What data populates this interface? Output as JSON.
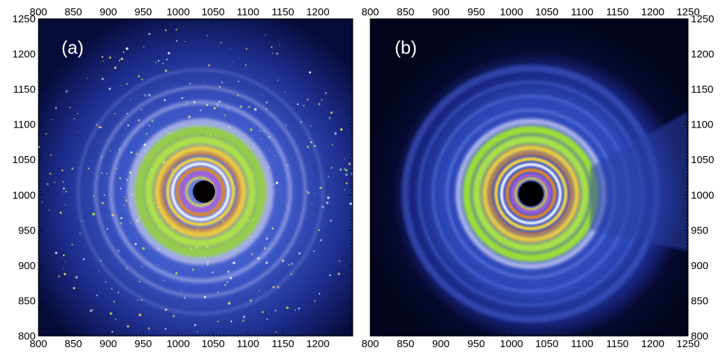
{
  "figure": {
    "panels": [
      {
        "id": "a",
        "label": "(a)",
        "x_ticks": [
          "800",
          "850",
          "900",
          "950",
          "1000",
          "1050",
          "1100",
          "1150",
          "1200"
        ],
        "y_ticks": [
          "800",
          "850",
          "900",
          "950",
          "1000",
          "1050",
          "1100",
          "1150",
          "1200",
          "1250"
        ],
        "x_range": [
          800,
          1250
        ],
        "y_range": [
          800,
          1250
        ]
      },
      {
        "id": "b",
        "label": "(b)",
        "x_ticks": [
          "800",
          "850",
          "900",
          "950",
          "1000",
          "1050",
          "1100",
          "1150",
          "1200",
          "1250"
        ],
        "y_ticks": [
          "800",
          "850",
          "900",
          "950",
          "1000",
          "1050",
          "1100",
          "1150",
          "1200",
          "1250"
        ],
        "x_range": [
          800,
          1250
        ],
        "y_range": [
          800,
          1250
        ]
      }
    ],
    "colors": {
      "background_dark": "#040a2e",
      "halo_blue": "#3d55c9",
      "ring_lavender": "#b8b8e8",
      "ring_green": "#9bdc3a",
      "ring_yellow": "#f3d13a",
      "ring_orange": "#e38a25",
      "ring_white": "#ffffff",
      "ring_purple": "#b05ad8",
      "beamstop": "#000000"
    }
  }
}
